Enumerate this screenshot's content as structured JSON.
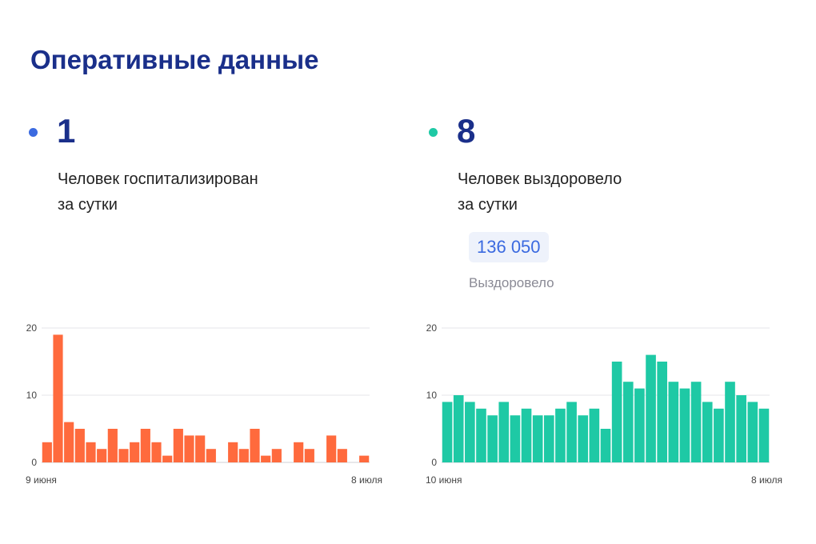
{
  "header": {
    "title": "Оперативные данные"
  },
  "stats": [
    {
      "value": "1",
      "desc_line1": "Человек госпитализирован",
      "desc_line2": "за сутки",
      "color": "#3b6ae0"
    },
    {
      "value": "8",
      "desc_line1": "Человек выздоровело",
      "desc_line2": "за сутки",
      "color": "#1ec9a5"
    }
  ],
  "recovered_total": {
    "value": "136 050",
    "label": "Выздоровело"
  },
  "chart_data": [
    {
      "type": "bar",
      "series": [
        {
          "values": [
            3,
            19,
            6,
            5,
            3,
            2,
            5,
            2,
            3,
            5,
            3,
            1,
            5,
            4,
            4,
            2,
            0,
            3,
            2,
            5,
            1,
            2,
            0,
            3,
            2,
            0,
            4,
            2,
            0,
            1
          ]
        }
      ],
      "ylim": [
        0,
        20
      ],
      "yticks": [
        "0",
        "10",
        "20"
      ],
      "xtick_start": "9 июня",
      "xtick_end": "8 июля",
      "color": "#ff6a3d"
    },
    {
      "type": "bar",
      "series": [
        {
          "values": [
            9,
            10,
            9,
            8,
            7,
            9,
            7,
            8,
            7,
            7,
            8,
            9,
            7,
            8,
            5,
            15,
            12,
            11,
            16,
            15,
            12,
            11,
            12,
            9,
            8,
            12,
            10,
            9,
            8
          ]
        }
      ],
      "ylim": [
        0,
        20
      ],
      "yticks": [
        "0",
        "10",
        "20"
      ],
      "xtick_start": "10 июня",
      "xtick_end": "8 июля",
      "color": "#1ec9a5"
    }
  ]
}
